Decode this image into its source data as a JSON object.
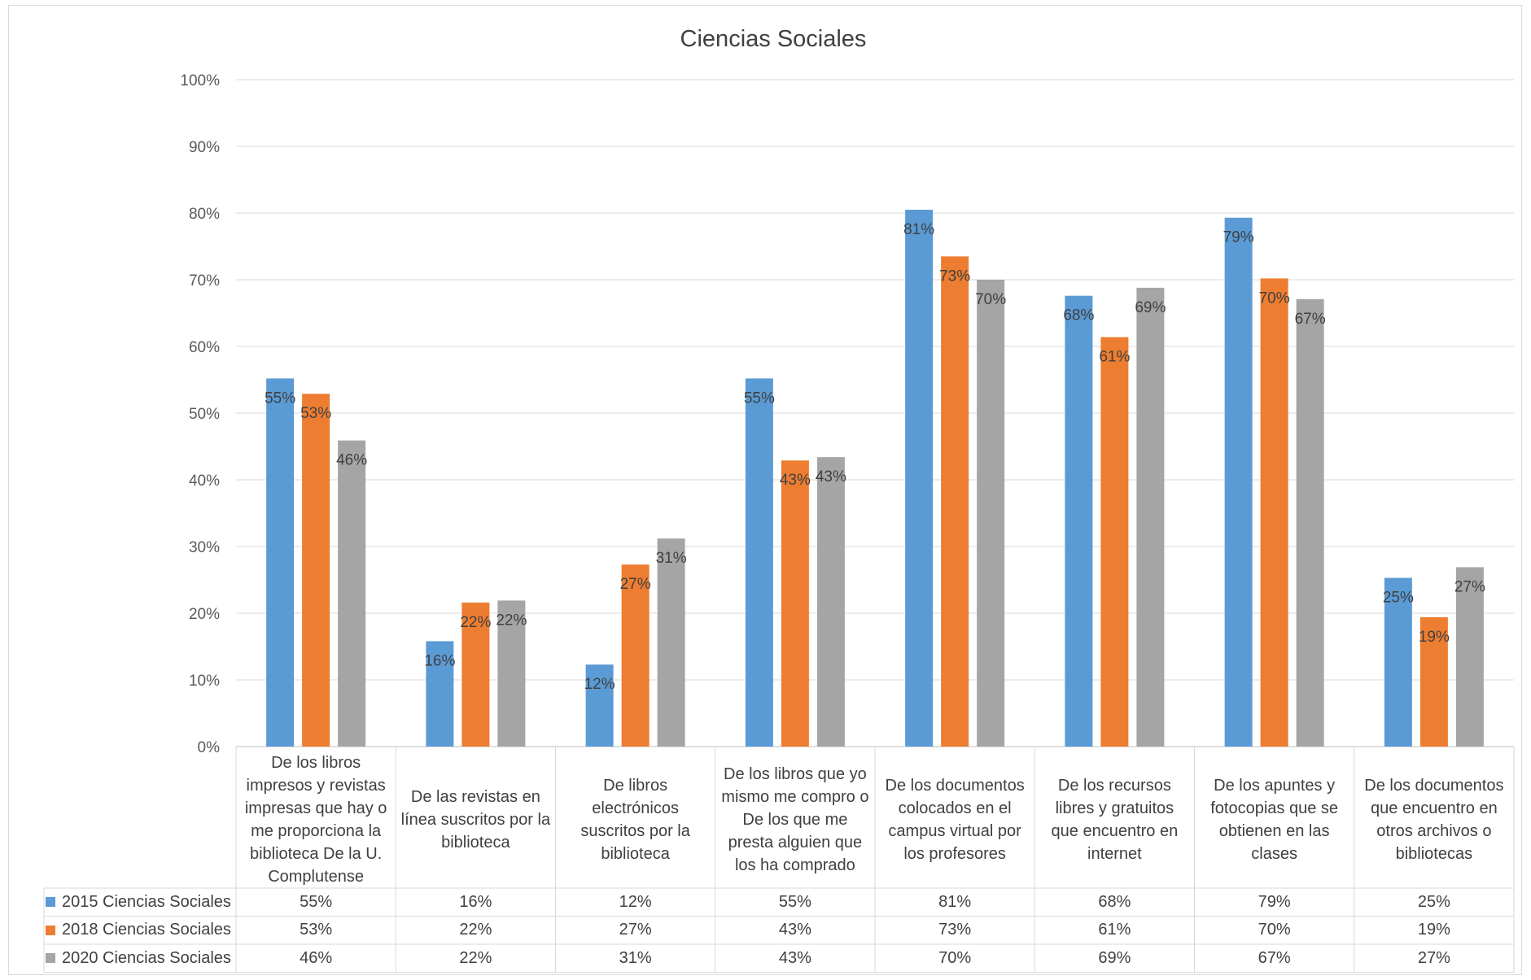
{
  "chart_data": {
    "type": "bar",
    "title": "Ciencias Sociales",
    "ylim": [
      0,
      100
    ],
    "y_ticks": [
      "0%",
      "10%",
      "20%",
      "30%",
      "40%",
      "50%",
      "60%",
      "70%",
      "80%",
      "90%",
      "100%"
    ],
    "grid": true,
    "legend_placement": "bottom (data table)",
    "categories": [
      "De los libros impresos y revistas impresas que hay o me proporciona la biblioteca De la U. Complutense",
      "De las revistas en línea suscritos por la biblioteca",
      "De libros electrónicos suscritos por la biblioteca",
      "De los libros que yo mismo me compro o De los que me presta alguien que los ha comprado",
      "De los documentos colocados en el campus virtual por los profesores",
      "De los recursos libres y gratuitos que encuentro en internet",
      "De los apuntes y fotocopias que se obtienen en las clases",
      "De los documentos que encuentro en otros archivos o bibliotecas"
    ],
    "series": [
      {
        "name": "2015 Ciencias Sociales",
        "color": "#5b9bd5",
        "values": [
          55.2,
          15.8,
          12.3,
          55.2,
          80.5,
          67.6,
          79.3,
          25.3
        ],
        "labels": [
          "55%",
          "16%",
          "12%",
          "55%",
          "81%",
          "68%",
          "79%",
          "25%"
        ]
      },
      {
        "name": "2018 Ciencias Sociales",
        "color": "#ed7d31",
        "values": [
          52.9,
          21.6,
          27.3,
          42.9,
          73.5,
          61.4,
          70.2,
          19.4
        ],
        "labels": [
          "53%",
          "22%",
          "27%",
          "43%",
          "73%",
          "61%",
          "70%",
          "19%"
        ]
      },
      {
        "name": "2020 Ciencias Sociales",
        "color": "#a5a5a5",
        "values": [
          45.9,
          21.9,
          31.2,
          43.4,
          70.0,
          68.8,
          67.1,
          26.9
        ],
        "labels": [
          "46%",
          "22%",
          "31%",
          "43%",
          "70%",
          "69%",
          "67%",
          "27%"
        ]
      }
    ]
  }
}
